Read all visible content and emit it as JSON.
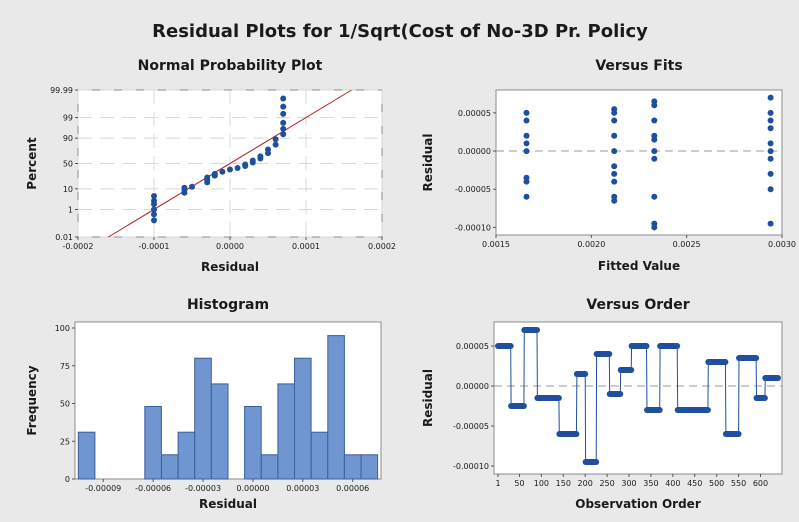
{
  "figure": {
    "title": "Residual Plots for 1/Sqrt(Cost of No-3D Pr. Policy",
    "colors": {
      "background": "#e9e9e9",
      "panel": "#ffffff",
      "point": "#1f4f9e",
      "fit_line": "#b22222",
      "bar_fill": "#7096d2",
      "bar_edge": "#3a5f9a",
      "reference_line": "#999999",
      "grid": "#d8d8d8"
    }
  },
  "chart_data": [
    {
      "type": "scatter",
      "title": "Normal Probability Plot",
      "xlabel": "Residual",
      "ylabel": "Percent",
      "xlim": [
        -0.0002,
        0.0002
      ],
      "xticks": [
        -0.0002,
        -0.0001,
        0.0,
        0.0001,
        0.0002
      ],
      "xtick_labels": [
        "-0.0002",
        "-0.0001",
        "0.0000",
        "0.0001",
        "0.0002"
      ],
      "y_scale": "normal probability",
      "yticks": [
        0.01,
        1,
        10,
        50,
        90,
        99,
        99.99
      ],
      "ytick_labels": [
        "0.01",
        "1",
        "10",
        "50",
        "90",
        "99",
        "99.99"
      ],
      "grid": true,
      "fit_line": {
        "x": [
          -0.00016,
          0.00016
        ],
        "y": [
          0.01,
          99.99
        ]
      },
      "points": [
        [
          -0.0001,
          0.2
        ],
        [
          -0.0001,
          0.5
        ],
        [
          -0.0001,
          1
        ],
        [
          -0.0001,
          2
        ],
        [
          -0.0001,
          3
        ],
        [
          -0.0001,
          5
        ],
        [
          -6e-05,
          7
        ],
        [
          -6e-05,
          9
        ],
        [
          -6e-05,
          11
        ],
        [
          -5e-05,
          12
        ],
        [
          -3e-05,
          17
        ],
        [
          -3e-05,
          20
        ],
        [
          -3e-05,
          24
        ],
        [
          -2e-05,
          27
        ],
        [
          -2e-05,
          30
        ],
        [
          -1e-05,
          34
        ],
        [
          0.0,
          38
        ],
        [
          1e-05,
          41
        ],
        [
          2e-05,
          45
        ],
        [
          2e-05,
          48
        ],
        [
          3e-05,
          52
        ],
        [
          3e-05,
          56
        ],
        [
          4e-05,
          60
        ],
        [
          4e-05,
          64
        ],
        [
          5e-05,
          70
        ],
        [
          5e-05,
          76
        ],
        [
          6e-05,
          83
        ],
        [
          6e-05,
          89
        ],
        [
          7e-05,
          93
        ],
        [
          7e-05,
          96
        ],
        [
          7e-05,
          98
        ],
        [
          7e-05,
          99.4
        ],
        [
          7e-05,
          99.8
        ],
        [
          7e-05,
          99.95
        ]
      ]
    },
    {
      "type": "scatter",
      "title": "Versus Fits",
      "xlabel": "Fitted Value",
      "ylabel": "Residual",
      "xlim": [
        0.0015,
        0.003
      ],
      "xticks": [
        0.0015,
        0.002,
        0.0025,
        0.003
      ],
      "xtick_labels": [
        "0.0015",
        "0.0020",
        "0.0025",
        "0.0030"
      ],
      "ylim": [
        -0.00011,
        8e-05
      ],
      "yticks": [
        -0.0001,
        -5e-05,
        0.0,
        5e-05
      ],
      "ytick_labels": [
        "-0.00010",
        "-0.00005",
        "0.00000",
        "0.00005"
      ],
      "reference_line": 0.0,
      "x": [
        0.00166,
        0.00166,
        0.00166,
        0.00166,
        0.00166,
        0.00166,
        0.00166,
        0.00166,
        0.00212,
        0.00212,
        0.00212,
        0.00212,
        0.00212,
        0.00212,
        0.00212,
        0.00212,
        0.00212,
        0.00212,
        0.00233,
        0.00233,
        0.00233,
        0.00233,
        0.00233,
        0.00233,
        0.00233,
        0.00233,
        0.00233,
        0.00233,
        0.00294,
        0.00294,
        0.00294,
        0.00294,
        0.00294,
        0.00294,
        0.00294,
        0.00294,
        0.00294,
        0.00294
      ],
      "y": [
        5e-05,
        4e-05,
        2e-05,
        1e-05,
        0.0,
        -3.5e-05,
        -4e-05,
        -6e-05,
        5.5e-05,
        5e-05,
        4e-05,
        2e-05,
        0.0,
        -2e-05,
        -3e-05,
        -4e-05,
        -6e-05,
        -6.5e-05,
        6.5e-05,
        6e-05,
        4e-05,
        2e-05,
        1.5e-05,
        0.0,
        -1e-05,
        -6e-05,
        -9.5e-05,
        -0.0001,
        7e-05,
        5e-05,
        4e-05,
        3e-05,
        1e-05,
        0.0,
        -1e-05,
        -3e-05,
        -5e-05,
        -9.5e-05
      ]
    },
    {
      "type": "bar",
      "title": "Histogram",
      "xlabel": "Residual",
      "ylabel": "Frequency",
      "ylim": [
        0,
        100
      ],
      "yticks": [
        0,
        25,
        50,
        75,
        100
      ],
      "ytick_labels": [
        "0",
        "25",
        "50",
        "75",
        "100"
      ],
      "xticks": [
        -9e-05,
        -6e-05,
        -3e-05,
        0.0,
        3e-05,
        6e-05
      ],
      "xtick_labels": [
        "-0.00009",
        "-0.00006",
        "-0.00003",
        "0.00000",
        "0.00003",
        "0.00006"
      ],
      "bin_width": 1e-05,
      "bin_centers": [
        -0.0001,
        -9e-05,
        -8e-05,
        -7e-05,
        -6e-05,
        -5e-05,
        -4e-05,
        -3e-05,
        -2e-05,
        -1e-05,
        0.0,
        1e-05,
        2e-05,
        3e-05,
        4e-05,
        5e-05,
        6e-05,
        7e-05
      ],
      "values": [
        31,
        0,
        0,
        0,
        48,
        16,
        31,
        80,
        63,
        0,
        48,
        16,
        63,
        80,
        31,
        95,
        16,
        16
      ]
    },
    {
      "type": "line",
      "title": "Versus Order",
      "xlabel": "Observation Order",
      "ylabel": "Residual",
      "xlim": [
        1,
        640
      ],
      "xticks": [
        1,
        50,
        100,
        150,
        200,
        250,
        300,
        350,
        400,
        450,
        500,
        550,
        600
      ],
      "xtick_labels": [
        "1",
        "50",
        "100",
        "150",
        "200",
        "250",
        "300",
        "350",
        "400",
        "450",
        "500",
        "550",
        "600"
      ],
      "ylim": [
        -0.00011,
        8e-05
      ],
      "yticks": [
        -0.0001,
        -5e-05,
        0.0,
        5e-05
      ],
      "ytick_labels": [
        "-0.00010",
        "-0.00005",
        "0.00000",
        "0.00005"
      ],
      "reference_line": 0.0,
      "segments": [
        [
          1,
          30,
          5e-05
        ],
        [
          31,
          60,
          -2.5e-05
        ],
        [
          61,
          90,
          7e-05
        ],
        [
          91,
          140,
          -1.5e-05
        ],
        [
          141,
          180,
          -6e-05
        ],
        [
          181,
          200,
          1.5e-05
        ],
        [
          201,
          225,
          -9.5e-05
        ],
        [
          226,
          255,
          4e-05
        ],
        [
          256,
          280,
          -1e-05
        ],
        [
          281,
          305,
          2e-05
        ],
        [
          306,
          340,
          5e-05
        ],
        [
          341,
          370,
          -3e-05
        ],
        [
          371,
          410,
          5e-05
        ],
        [
          411,
          480,
          -3e-05
        ],
        [
          481,
          520,
          3e-05
        ],
        [
          521,
          550,
          -6e-05
        ],
        [
          551,
          590,
          3.5e-05
        ],
        [
          591,
          610,
          -1.5e-05
        ],
        [
          611,
          640,
          1e-05
        ]
      ]
    }
  ]
}
